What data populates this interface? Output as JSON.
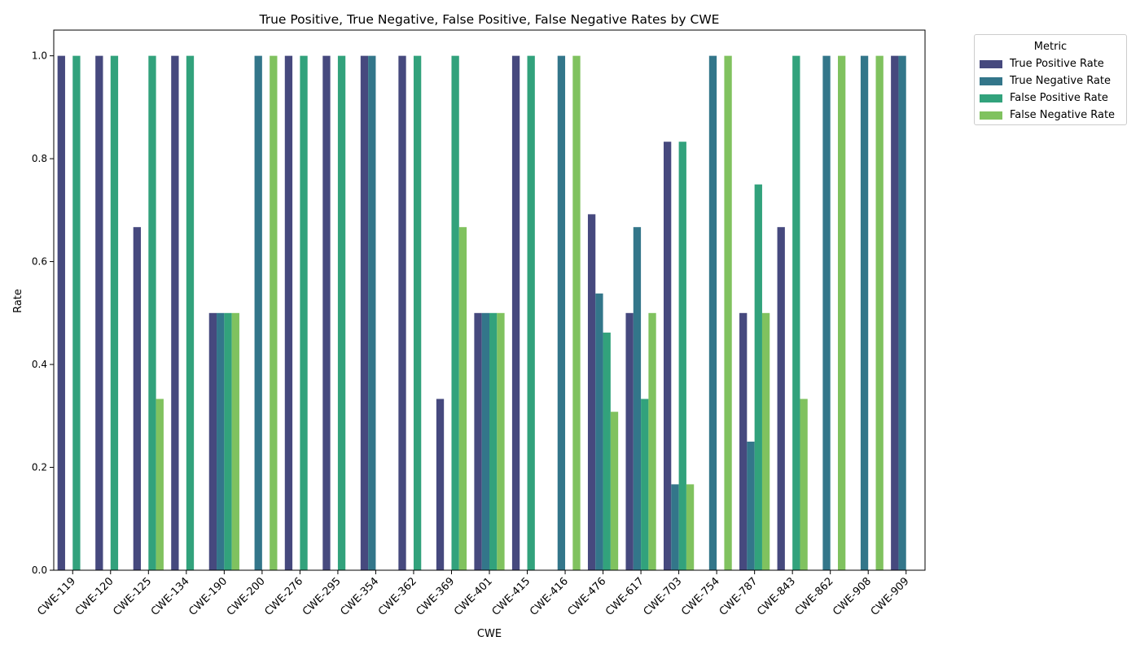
{
  "chart_data": {
    "type": "bar",
    "title": "True Positive, True Negative, False Positive, False Negative Rates by CWE",
    "xlabel": "CWE",
    "ylabel": "Rate",
    "ylim": [
      0,
      1.05
    ],
    "yticks": [
      "0.0",
      "0.2",
      "0.4",
      "0.6",
      "0.8",
      "1.0"
    ],
    "legend_title": "Metric",
    "legend_position": "outside upper-right",
    "categories": [
      "CWE-119",
      "CWE-120",
      "CWE-125",
      "CWE-134",
      "CWE-190",
      "CWE-200",
      "CWE-276",
      "CWE-295",
      "CWE-354",
      "CWE-362",
      "CWE-369",
      "CWE-401",
      "CWE-415",
      "CWE-416",
      "CWE-476",
      "CWE-617",
      "CWE-703",
      "CWE-754",
      "CWE-787",
      "CWE-843",
      "CWE-862",
      "CWE-908",
      "CWE-909"
    ],
    "series": [
      {
        "name": "True Positive Rate",
        "color": "#46497e",
        "values": [
          1,
          1,
          0.667,
          1,
          0.5,
          0,
          1,
          1,
          1,
          1,
          0.333,
          0.5,
          1,
          0,
          0.692,
          0.5,
          0.833,
          0,
          0.5,
          0.667,
          0,
          0,
          1
        ]
      },
      {
        "name": "True Negative Rate",
        "color": "#33768a",
        "values": [
          0,
          0,
          0,
          0,
          0.5,
          1,
          0,
          0,
          1,
          0,
          0,
          0.5,
          0,
          1,
          0.538,
          0.667,
          0.167,
          1,
          0.25,
          0,
          1,
          1,
          1
        ]
      },
      {
        "name": "False Positive Rate",
        "color": "#32a27c",
        "values": [
          1,
          1,
          1,
          1,
          0.5,
          0,
          1,
          1,
          0,
          1,
          1,
          0.5,
          1,
          0,
          0.462,
          0.333,
          0.833,
          0,
          0.75,
          1,
          0,
          0,
          0
        ]
      },
      {
        "name": "False Negative Rate",
        "color": "#80c25f",
        "values": [
          0,
          0,
          0.333,
          0,
          0.5,
          1,
          0,
          0,
          0,
          0,
          0.667,
          0.5,
          0,
          1,
          0.308,
          0.5,
          0.167,
          1,
          0.5,
          0.333,
          1,
          1,
          0
        ]
      }
    ]
  }
}
